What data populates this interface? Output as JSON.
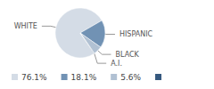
{
  "chart_data": {
    "type": "pie",
    "categories": [
      "WHITE",
      "HISPANIC",
      "BLACK",
      "A.I."
    ],
    "values": [
      76.1,
      18.1,
      5.6,
      0.2
    ],
    "value_labels": [
      "76.1%",
      "18.1%",
      "5.6%",
      null
    ],
    "colors": [
      "#d4dce6",
      "#7192b4",
      "#b1c1d3",
      "#36597f"
    ],
    "legend": "bottom"
  }
}
